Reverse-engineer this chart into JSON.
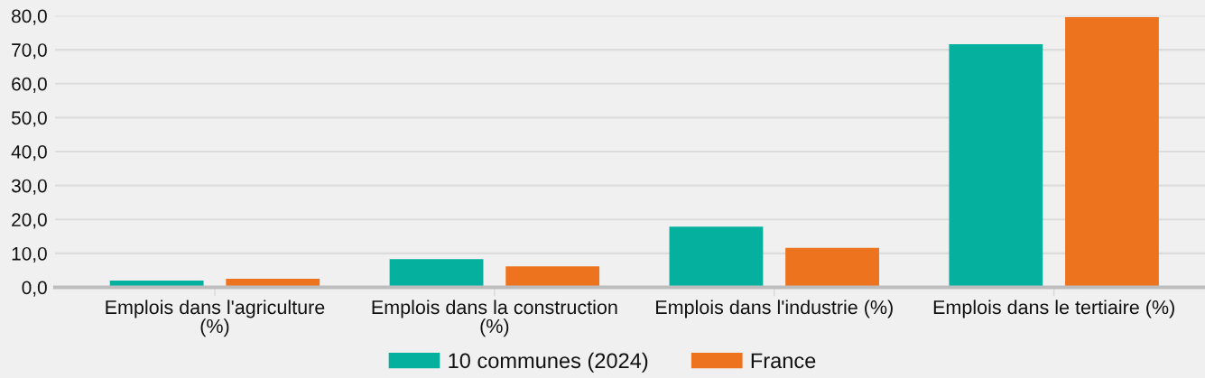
{
  "chart_data": {
    "type": "bar",
    "categories": [
      "Emplois dans l'agriculture (%)",
      "Emplois dans la construction (%)",
      "Emplois dans l'industrie (%)",
      "Emplois dans le tertiaire (%)"
    ],
    "series": [
      {
        "name": "10 communes (2024)",
        "color": "#06b09e",
        "values": [
          2.0,
          8.3,
          17.9,
          71.6
        ]
      },
      {
        "name": "France",
        "color": "#ee731e",
        "values": [
          2.5,
          6.2,
          11.6,
          79.6
        ]
      }
    ],
    "ylim": [
      0,
      80
    ],
    "yticks": [
      {
        "value": 0,
        "label": "0,0"
      },
      {
        "value": 10,
        "label": "10,0"
      },
      {
        "value": 20,
        "label": "20,0"
      },
      {
        "value": 30,
        "label": "30,0"
      },
      {
        "value": 40,
        "label": "40,0"
      },
      {
        "value": 50,
        "label": "50,0"
      },
      {
        "value": 60,
        "label": "60,0"
      },
      {
        "value": 70,
        "label": "70,0"
      },
      {
        "value": 80,
        "label": "80,0"
      }
    ],
    "grid": "y",
    "legend": "bottom"
  }
}
